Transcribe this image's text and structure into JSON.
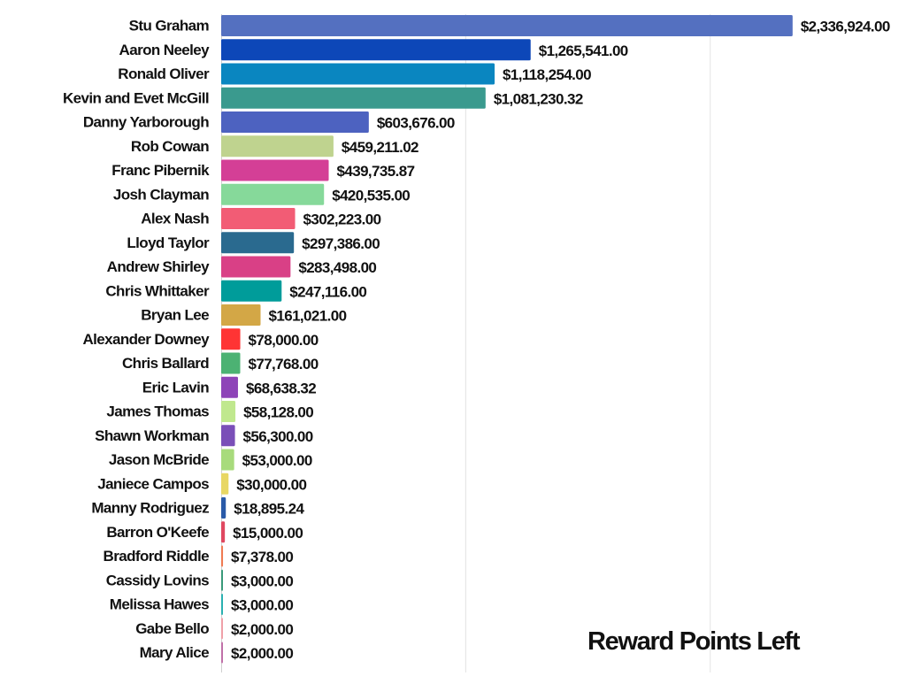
{
  "chart_data": {
    "type": "bar",
    "orientation": "horizontal",
    "title": "Reward Points Left",
    "xlabel": "",
    "ylabel": "",
    "xlim": [
      0,
      2750000
    ],
    "grid": true,
    "legend": "none",
    "categories": [
      "Stu Graham",
      "Aaron Neeley",
      "Ronald Oliver",
      "Kevin and Evet McGill",
      "Danny Yarborough",
      "Rob Cowan",
      "Franc Pibernik",
      "Josh Clayman",
      "Alex Nash",
      "Lloyd Taylor",
      "Andrew Shirley",
      "Chris Whittaker",
      "Bryan Lee",
      "Alexander Downey",
      "Chris Ballard",
      "Eric Lavin",
      "James Thomas",
      "Shawn Workman",
      "Jason McBride",
      "Janiece Campos",
      "Manny Rodriguez",
      "Barron O'Keefe",
      "Bradford Riddle",
      "Cassidy Lovins",
      "Melissa Hawes",
      "Gabe Bello",
      "Mary Alice"
    ],
    "values": [
      2336924,
      1265541,
      1118254,
      1081230.32,
      603676,
      459211.02,
      439735.87,
      420535,
      302223,
      297386,
      283498,
      247116,
      161021,
      78000,
      77768,
      68638.32,
      58128,
      56300,
      53000,
      30000,
      18895.24,
      15000,
      7378,
      3000,
      3000,
      2000,
      2000
    ],
    "value_labels": [
      "$2,336,924.00",
      "$1,265,541.00",
      "$1,118,254.00",
      "$1,081,230.32",
      "$603,676.00",
      "$459,211.02",
      "$439,735.87",
      "$420,535.00",
      "$302,223.00",
      "$297,386.00",
      "$283,498.00",
      "$247,116.00",
      "$161,021.00",
      "$78,000.00",
      "$77,768.00",
      "$68,638.32",
      "$58,128.00",
      "$56,300.00",
      "$53,000.00",
      "$30,000.00",
      "$18,895.24",
      "$15,000.00",
      "$7,378.00",
      "$3,000.00",
      "$3,000.00",
      "$2,000.00",
      "$2,000.00"
    ],
    "colors": [
      "#5470c0",
      "#0d47b8",
      "#0a86c0",
      "#3a9a8e",
      "#4d62c0",
      "#bfd38f",
      "#d43f96",
      "#86d99a",
      "#f25c75",
      "#2a6a8f",
      "#d94086",
      "#009c9a",
      "#d3a746",
      "#ff3434",
      "#4cb273",
      "#8e44b8",
      "#c0e88e",
      "#7a4fb8",
      "#a8db7c",
      "#e8d764",
      "#2a5aa8",
      "#e04860",
      "#f07a52",
      "#3a9a7a",
      "#2ab0b0",
      "#f0a0a8",
      "#c070a8"
    ]
  }
}
